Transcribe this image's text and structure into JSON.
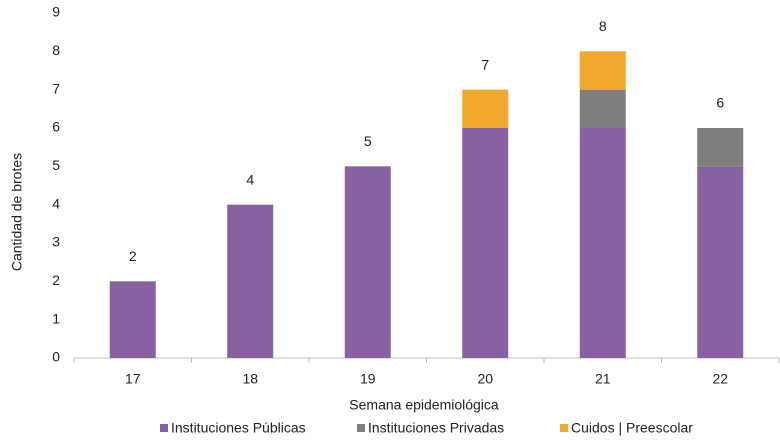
{
  "chart_data": {
    "type": "stacked_bar",
    "x_label": "Semana epidemiológica",
    "y_label": "Cantidad de brotes",
    "categories": [
      "17",
      "18",
      "19",
      "20",
      "21",
      "22"
    ],
    "series": [
      {
        "name": "Instituciones Públicas",
        "color": "#8662a0",
        "values": [
          2,
          4,
          5,
          6,
          6,
          5
        ]
      },
      {
        "name": "Instituciones Privadas",
        "color": "#7f7f7f",
        "values": [
          0,
          0,
          0,
          0,
          1,
          1
        ]
      },
      {
        "name": "Cuidos | Preescolar",
        "color": "#f0a82a",
        "values": [
          0,
          0,
          0,
          1,
          1,
          0
        ]
      }
    ],
    "total_labels": [
      2,
      4,
      5,
      7,
      8,
      6
    ],
    "ylim": [
      0,
      9
    ],
    "yticks": [
      0,
      1,
      2,
      3,
      4,
      5,
      6,
      7,
      8,
      9
    ],
    "grid": false,
    "legend": "bottom"
  }
}
